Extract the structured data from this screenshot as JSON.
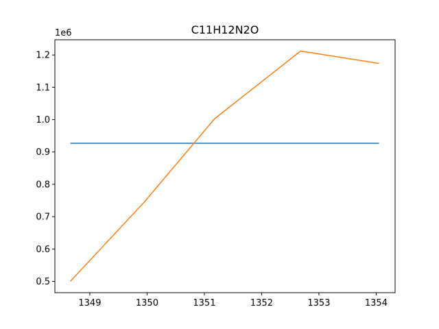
{
  "chart_data": {
    "type": "line",
    "title": "C11H12N2O",
    "xlabel": "",
    "ylabel": "",
    "y_offset_label": "1e6",
    "xlim": [
      1348.39,
      1354.33
    ],
    "ylim": [
      465000,
      1247000
    ],
    "x_ticks": [
      1349,
      1350,
      1351,
      1352,
      1353,
      1354
    ],
    "y_ticks": [
      500000,
      600000,
      700000,
      800000,
      900000,
      1000000,
      1100000,
      1200000
    ],
    "y_tick_labels": [
      "0.5",
      "0.6",
      "0.7",
      "0.8",
      "0.9",
      "1.0",
      "1.1",
      "1.2"
    ],
    "grid": false,
    "legend": "none",
    "series": [
      {
        "color": "#1f77b4",
        "x": [
          1348.66,
          1354.05
        ],
        "y": [
          927000,
          927000
        ]
      },
      {
        "color": "#ff7f0e",
        "x": [
          1348.66,
          1349.95,
          1351.18,
          1352.68,
          1354.05
        ],
        "y": [
          500000,
          745000,
          1003000,
          1212000,
          1174000
        ]
      }
    ]
  }
}
